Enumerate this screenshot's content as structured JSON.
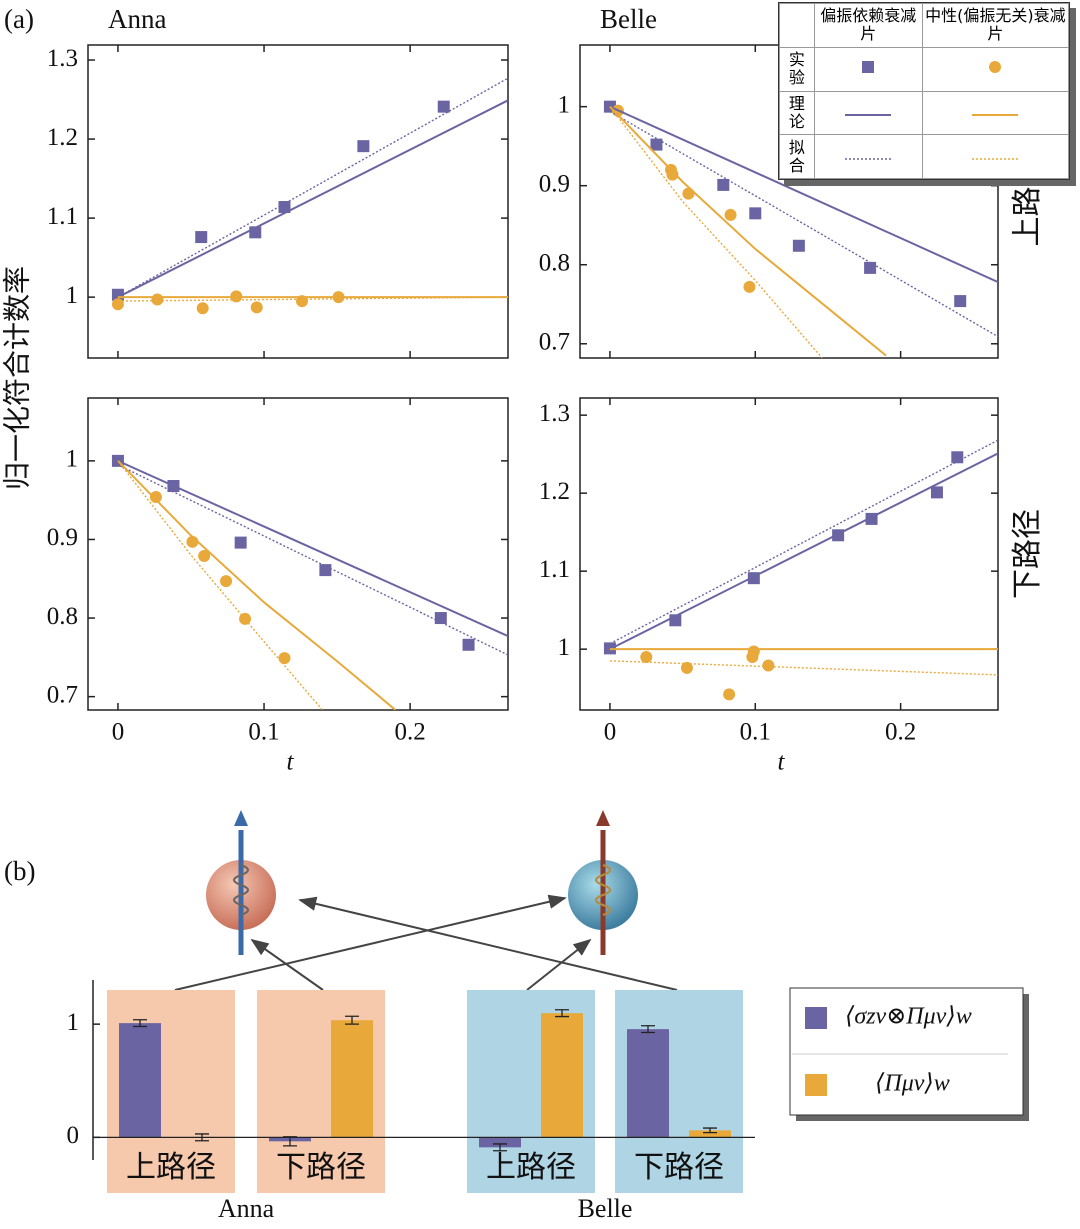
{
  "chart_data": [
    {
      "type": "scatter",
      "title": "Anna",
      "panel_label": "(a)",
      "ylabel": "归一化符合计数率",
      "xlim": [
        -0.0205,
        0.267
      ],
      "ylim": [
        0.923,
        1.319
      ],
      "xticks": [
        0,
        0.1,
        0.2
      ],
      "yticks": [
        1,
        1.1,
        1.2,
        1.3
      ],
      "series": [
        {
          "mode": "markers",
          "marker": "square",
          "color": "#6a64a3",
          "x": [
            0,
            0.057,
            0.094,
            0.114,
            0.168,
            0.223
          ],
          "values": [
            1.003,
            1.076,
            1.082,
            1.114,
            1.191,
            1.241
          ]
        },
        {
          "mode": "markers",
          "marker": "circle",
          "color": "#e8a93a",
          "x": [
            0,
            0.027,
            0.058,
            0.081,
            0.095,
            0.126,
            0.151
          ],
          "values": [
            0.991,
            0.997,
            0.986,
            1.001,
            0.987,
            0.995,
            1.0
          ]
        },
        {
          "mode": "line",
          "dash": "solid",
          "color": "#6a64a3",
          "x": [
            0,
            0.267
          ],
          "values": [
            1,
            1.249
          ]
        },
        {
          "mode": "line",
          "dash": "dotted",
          "color": "#6a64a3",
          "x": [
            0,
            0.267
          ],
          "values": [
            1.0,
            1.277
          ]
        },
        {
          "mode": "line",
          "dash": "solid",
          "color": "#e8a93a",
          "x": [
            0,
            0.267
          ],
          "values": [
            1.0,
            1.0
          ]
        },
        {
          "mode": "line",
          "dash": "dotted",
          "color": "#e8a93a",
          "x": [
            0,
            0.267
          ],
          "values": [
            0.995,
            1.0
          ]
        }
      ]
    },
    {
      "type": "scatter",
      "title": "Belle",
      "row_label": "上路径",
      "xlim": [
        -0.0206,
        0.267
      ],
      "ylim": [
        0.682,
        1.078
      ],
      "xticks": [
        0,
        0.1,
        0.2
      ],
      "yticks": [
        0.7,
        0.8,
        0.9,
        1
      ],
      "legend_table": {
        "columns": [
          "偏振依赖衰减片",
          "中性(偏振无关)衰减片"
        ],
        "rows": [
          "实验",
          "理论",
          "拟合"
        ]
      },
      "series": [
        {
          "mode": "markers",
          "marker": "square",
          "color": "#6a64a3",
          "x": [
            0,
            0.032,
            0.078,
            0.1,
            0.13,
            0.179,
            0.241
          ],
          "values": [
            1.0,
            0.952,
            0.901,
            0.865,
            0.824,
            0.796,
            0.754
          ]
        },
        {
          "mode": "markers",
          "marker": "circle",
          "color": "#e8a93a",
          "x": [
            0.0055,
            0.042,
            0.043,
            0.054,
            0.083,
            0.096
          ],
          "values": [
            0.995,
            0.92,
            0.914,
            0.89,
            0.863,
            0.772
          ]
        },
        {
          "mode": "line",
          "dash": "solid",
          "color": "#6a64a3",
          "x": [
            0,
            0.267
          ],
          "values": [
            1,
            0.778
          ]
        },
        {
          "mode": "line",
          "dash": "dotted",
          "color": "#6a64a3",
          "x": [
            0,
            0.267
          ],
          "values": [
            0.994,
            0.709
          ]
        },
        {
          "mode": "line",
          "dash": "solid",
          "color": "#e8a93a",
          "x": [
            0,
            0.05,
            0.1,
            0.15,
            0.19
          ],
          "values": [
            1,
            0.905,
            0.82,
            0.745,
            0.685
          ]
        },
        {
          "mode": "line",
          "dash": "dotted",
          "color": "#e8a93a",
          "x": [
            0,
            0.05,
            0.1,
            0.146
          ],
          "values": [
            1,
            0.88,
            0.78,
            0.682
          ]
        }
      ]
    },
    {
      "type": "scatter",
      "xlabel": "t",
      "xlim": [
        -0.0205,
        0.267
      ],
      "ylim": [
        0.683,
        1.08
      ],
      "xticks": [
        0,
        0.1,
        0.2
      ],
      "yticks": [
        0.7,
        0.8,
        0.9,
        1
      ],
      "series": [
        {
          "mode": "markers",
          "marker": "square",
          "color": "#6a64a3",
          "x": [
            0,
            0.038,
            0.084,
            0.142,
            0.221,
            0.24
          ],
          "values": [
            1.0,
            0.968,
            0.896,
            0.861,
            0.8,
            0.766
          ]
        },
        {
          "mode": "markers",
          "marker": "circle",
          "color": "#e8a93a",
          "x": [
            0.026,
            0.051,
            0.059,
            0.074,
            0.087,
            0.114
          ],
          "values": [
            0.954,
            0.897,
            0.879,
            0.847,
            0.799,
            0.749
          ]
        },
        {
          "mode": "line",
          "dash": "solid",
          "color": "#6a64a3",
          "x": [
            0,
            0.267
          ],
          "values": [
            1,
            0.777
          ]
        },
        {
          "mode": "line",
          "dash": "dotted",
          "color": "#6a64a3",
          "x": [
            0,
            0.267
          ],
          "values": [
            0.995,
            0.753
          ]
        },
        {
          "mode": "line",
          "dash": "solid",
          "color": "#e8a93a",
          "x": [
            0,
            0.05,
            0.1,
            0.15,
            0.19
          ],
          "values": [
            1,
            0.905,
            0.82,
            0.745,
            0.683
          ]
        },
        {
          "mode": "line",
          "dash": "dotted",
          "color": "#e8a93a",
          "x": [
            0,
            0.05,
            0.1,
            0.14
          ],
          "values": [
            1,
            0.88,
            0.77,
            0.683
          ]
        }
      ]
    },
    {
      "type": "scatter",
      "xlabel": "t",
      "row_label": "下路径",
      "xlim": [
        -0.0206,
        0.267
      ],
      "ylim": [
        0.922,
        1.322
      ],
      "xticks": [
        0,
        0.1,
        0.2
      ],
      "yticks": [
        1,
        1.1,
        1.2,
        1.3
      ],
      "series": [
        {
          "mode": "markers",
          "marker": "square",
          "color": "#6a64a3",
          "x": [
            0,
            0.045,
            0.099,
            0.157,
            0.18,
            0.225,
            0.239
          ],
          "values": [
            1.001,
            1.037,
            1.091,
            1.146,
            1.167,
            1.201,
            1.246
          ]
        },
        {
          "mode": "markers",
          "marker": "circle",
          "color": "#e8a93a",
          "x": [
            0.025,
            0.053,
            0.082,
            0.098,
            0.099,
            0.109
          ],
          "values": [
            0.99,
            0.976,
            0.942,
            0.99,
            0.997,
            0.979
          ]
        },
        {
          "mode": "line",
          "dash": "solid",
          "color": "#6a64a3",
          "x": [
            0,
            0.267
          ],
          "values": [
            1,
            1.251
          ]
        },
        {
          "mode": "line",
          "dash": "dotted",
          "color": "#6a64a3",
          "x": [
            0,
            0.267
          ],
          "values": [
            1.007,
            1.268
          ]
        },
        {
          "mode": "line",
          "dash": "solid",
          "color": "#e8a93a",
          "x": [
            0,
            0.267
          ],
          "values": [
            1.0,
            1.0
          ]
        },
        {
          "mode": "line",
          "dash": "dotted",
          "color": "#e8a93a",
          "x": [
            0,
            0.267
          ],
          "values": [
            0.985,
            0.967
          ]
        }
      ]
    },
    {
      "type": "bar",
      "panel_label": "(b)",
      "categories": [
        "上路径",
        "下路径",
        "上路径",
        "下路径"
      ],
      "groups": [
        "Anna",
        "Belle"
      ],
      "group_colors": [
        "#f6c9ad",
        "#afd4e4"
      ],
      "ylim": [
        -0.2,
        1.39
      ],
      "yticks": [
        0,
        1
      ],
      "series": [
        {
          "name": "⟨σzν⊗Πμν⟩w",
          "color": "#6a64a3",
          "values": [
            1.009,
            -0.035,
            -0.088,
            0.956
          ],
          "errors": [
            0.03,
            0.04,
            0.03,
            0.03
          ]
        },
        {
          "name": "⟨Πμν⟩w",
          "color": "#e8a93a",
          "values": [
            0.0,
            1.035,
            1.097,
            0.062
          ],
          "errors": [
            0.03,
            0.035,
            0.03,
            0.02
          ]
        }
      ]
    }
  ]
}
